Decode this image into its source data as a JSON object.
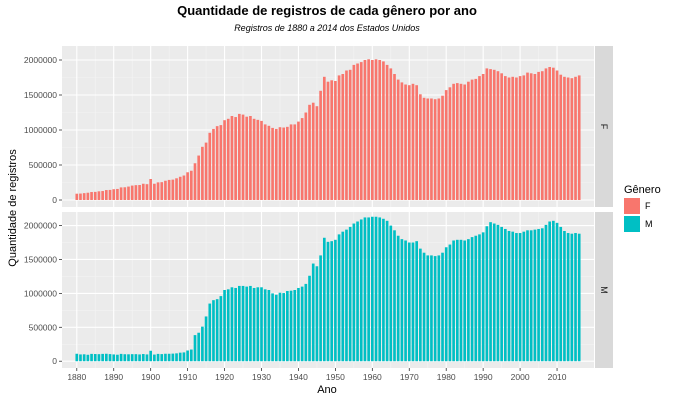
{
  "chart_data": {
    "type": "bar",
    "title": "Quantidade de registros de cada gênero por ano",
    "subtitle": "Registros de 1880 a 2014 dos Estados Unidos",
    "xlabel": "Ano",
    "ylabel": "Quantidade de registros",
    "xlim": [
      1876,
      2020
    ],
    "ylim": [
      -100000,
      2200000
    ],
    "x_ticks": [
      1880,
      1890,
      1900,
      1910,
      1920,
      1930,
      1940,
      1950,
      1960,
      1970,
      1980,
      1990,
      2000,
      2010
    ],
    "y_ticks": [
      0,
      500000,
      1000000,
      1500000,
      2000000
    ],
    "y_tick_labels": [
      "0",
      "500000",
      "1000000",
      "1500000",
      "2000000"
    ],
    "grid": true,
    "facets": "rows",
    "legend": {
      "title": "Gênero",
      "position": "right",
      "entries": [
        {
          "label": "F",
          "color": "#F8766D"
        },
        {
          "label": "M",
          "color": "#00BFC4"
        }
      ]
    },
    "x_start": 1880,
    "x_end": 2014,
    "series": [
      {
        "name": "F",
        "strip_label": "F",
        "color": "#F8766D",
        "values": [
          90000,
          92000,
          98000,
          104000,
          114000,
          116000,
          124000,
          128000,
          142000,
          144000,
          154000,
          158000,
          180000,
          182000,
          192000,
          206000,
          212000,
          214000,
          232000,
          226000,
          300000,
          232000,
          252000,
          255000,
          275000,
          287000,
          291000,
          310000,
          332000,
          350000,
          396000,
          418000,
          525000,
          635000,
          760000,
          820000,
          960000,
          1015000,
          1055000,
          1070000,
          1140000,
          1160000,
          1200000,
          1185000,
          1230000,
          1220000,
          1190000,
          1200000,
          1160000,
          1145000,
          1130000,
          1080000,
          1060000,
          1030000,
          1015000,
          1040000,
          1035000,
          1045000,
          1080000,
          1080000,
          1120000,
          1170000,
          1250000,
          1360000,
          1390000,
          1340000,
          1560000,
          1760000,
          1690000,
          1710000,
          1700000,
          1780000,
          1800000,
          1850000,
          1860000,
          1930000,
          1950000,
          1970000,
          2000000,
          2010000,
          2000000,
          2010000,
          2000000,
          1980000,
          1930000,
          1880000,
          1800000,
          1720000,
          1680000,
          1650000,
          1640000,
          1660000,
          1640000,
          1510000,
          1460000,
          1450000,
          1450000,
          1440000,
          1450000,
          1490000,
          1570000,
          1610000,
          1660000,
          1670000,
          1660000,
          1650000,
          1690000,
          1720000,
          1730000,
          1770000,
          1800000,
          1880000,
          1870000,
          1860000,
          1840000,
          1810000,
          1770000,
          1750000,
          1760000,
          1750000,
          1770000,
          1780000,
          1820000,
          1810000,
          1800000,
          1830000,
          1840000,
          1880000,
          1900000,
          1890000,
          1850000,
          1790000,
          1760000,
          1750000,
          1740000,
          1760000,
          1780000
        ]
      },
      {
        "name": "M",
        "strip_label": "M",
        "color": "#00BFC4",
        "values": [
          110000,
          100000,
          102000,
          95000,
          108000,
          106000,
          104000,
          108000,
          110000,
          105000,
          100000,
          96000,
          108000,
          103000,
          102000,
          104000,
          104000,
          100000,
          106000,
          100000,
          154000,
          98000,
          108000,
          105000,
          110000,
          110000,
          112000,
          116000,
          126000,
          130000,
          158000,
          172000,
          385000,
          420000,
          510000,
          660000,
          850000,
          900000,
          915000,
          960000,
          1050000,
          1060000,
          1090000,
          1080000,
          1110000,
          1110000,
          1100000,
          1110000,
          1080000,
          1090000,
          1090000,
          1060000,
          1050000,
          1000000,
          980000,
          1010000,
          1005000,
          1035000,
          1040000,
          1050000,
          1080000,
          1100000,
          1140000,
          1260000,
          1440000,
          1400000,
          1560000,
          1820000,
          1760000,
          1770000,
          1790000,
          1870000,
          1910000,
          1940000,
          1980000,
          2030000,
          2060000,
          2090000,
          2120000,
          2120000,
          2130000,
          2130000,
          2120000,
          2100000,
          2070000,
          2000000,
          1930000,
          1850000,
          1800000,
          1780000,
          1750000,
          1750000,
          1770000,
          1660000,
          1600000,
          1560000,
          1560000,
          1550000,
          1560000,
          1600000,
          1680000,
          1720000,
          1780000,
          1790000,
          1790000,
          1780000,
          1800000,
          1830000,
          1850000,
          1870000,
          1900000,
          1990000,
          2050000,
          2030000,
          2010000,
          1980000,
          1950000,
          1920000,
          1910000,
          1890000,
          1890000,
          1910000,
          1930000,
          1930000,
          1940000,
          1950000,
          1960000,
          2010000,
          2060000,
          2070000,
          2040000,
          1980000,
          1920000,
          1890000,
          1880000,
          1890000,
          1880000
        ]
      }
    ]
  }
}
